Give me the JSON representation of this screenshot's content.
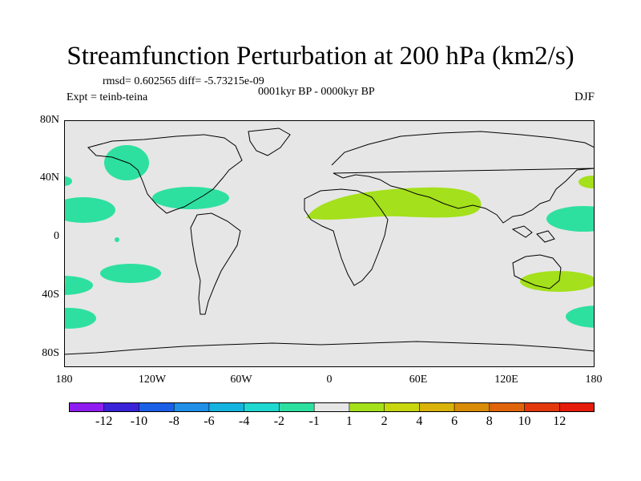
{
  "title": "Streamfunction Perturbation at 200 hPa (km2/s)",
  "stats_line": "rmsd= 0.602565  diff= -5.73215e-09",
  "period_label": "0001kyr BP - 0000kyr BP",
  "expt_label": "Expt = teinb-teina",
  "season_label": "DJF",
  "lat_labels": [
    "80N",
    "40N",
    "0",
    "40S",
    "80S"
  ],
  "lon_labels": [
    "180",
    "120W",
    "60W",
    "0",
    "60E",
    "120E",
    "180"
  ],
  "colorbar": {
    "labels": [
      "-12",
      "-10",
      "-8",
      "-6",
      "-4",
      "-2",
      "-1",
      "1",
      "2",
      "4",
      "6",
      "8",
      "10",
      "12"
    ],
    "colors": [
      "#8f1df0",
      "#3a22d9",
      "#1a5fe6",
      "#1f8fe8",
      "#15b4e0",
      "#1fd8d0",
      "#2ee0a0",
      "#e6e6e6",
      "#a4e01b",
      "#c7d60f",
      "#d9b20a",
      "#d98c08",
      "#df640a",
      "#e2380c",
      "#e51b0b"
    ]
  },
  "map_colors": {
    "background": "#e6e6e6",
    "negative_anomaly": "#2ee0a0",
    "positive_anomaly": "#a4e01b",
    "coastline": "#000000"
  }
}
